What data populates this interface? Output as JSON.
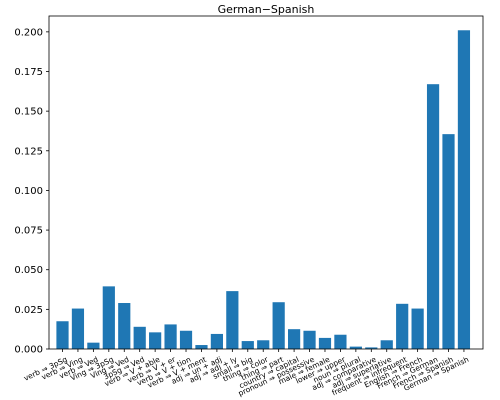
{
  "chart_data": {
    "type": "bar",
    "title": "German−Spanish",
    "xlabel": "",
    "ylabel": "",
    "ylim": [
      0,
      0.21
    ],
    "yticks": [
      "0.000",
      "0.025",
      "0.050",
      "0.075",
      "0.100",
      "0.125",
      "0.150",
      "0.175",
      "0.200"
    ],
    "grid": false,
    "bar_color": "#1f77b4",
    "categories": [
      "verb ⇒ 3pSg",
      "verb ⇒ Ving",
      "verb ⇒ Ved",
      "Ving ⇒ 3pSg",
      "Ving ⇒ Ved",
      "3pSg ⇒ Ved",
      "verb ⇒ V + able",
      "verb ⇒ V + er",
      "verb ⇒ V + tion",
      "verb ⇒ V + ment",
      "adj ⇒ un + adj",
      "adj ⇒ adj + ly",
      "small ⇒ big",
      "thing ⇒ color",
      "thing ⇒ part",
      "country ⇒ capital",
      "pronoun ⇒ possessive",
      "male ⇒ female",
      "lower ⇒ upper",
      "noun ⇒ plural",
      "adj ⇒ comparative",
      "adj ⇒ superlative",
      "frequent ⇒ infrequent",
      "English ⇒ French",
      "French ⇒ German",
      "French ⇒ Spanish",
      "German ⇒ Spanish"
    ],
    "values": [
      0.0175,
      0.0255,
      0.004,
      0.0395,
      0.029,
      0.014,
      0.0105,
      0.0155,
      0.0115,
      0.0025,
      0.0095,
      0.0365,
      0.005,
      0.0055,
      0.0295,
      0.0125,
      0.0115,
      0.007,
      0.009,
      0.0015,
      0.001,
      0.0055,
      0.0285,
      0.0255,
      0.167,
      0.1355,
      0.201
    ]
  }
}
